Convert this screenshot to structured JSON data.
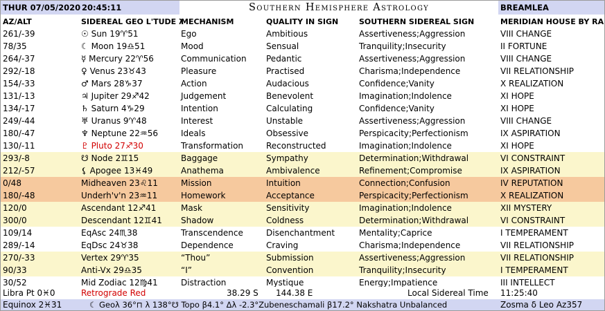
{
  "header": {
    "datetime": "THUR 07/05/2020",
    "time": "20:45:11",
    "title": "Southern Hemisphere Astrology",
    "location": "BREAMLEA"
  },
  "columns": [
    "AZ/ALT",
    "SIDEREAL GEO L'TUDE λ",
    "MECHANISM",
    "QUALITY IN SIGN",
    "SOUTHERN SIDEREAL SIGN",
    "MERIDIAN HOUSE BY RA"
  ],
  "rows": [
    {
      "azalt": "261/-39",
      "body": "☉ Sun 19♈51",
      "mechanism": "Ego",
      "quality": "Ambitious",
      "sign": "Assertiveness;Aggression",
      "house": "VIII CHANGE"
    },
    {
      "azalt": "78/35",
      "body": "☾ Moon 19♎51",
      "mechanism": "Mood",
      "quality": "Sensual",
      "sign": "Tranquility;Insecurity",
      "house": "II FORTUNE"
    },
    {
      "azalt": "264/-37",
      "body": "☿ Mercury 22♈56",
      "mechanism": "Communication",
      "quality": "Pedantic",
      "sign": "Assertiveness;Aggression",
      "house": "VIII CHANGE"
    },
    {
      "azalt": "292/-18",
      "body": "♀ Venus 23♉43",
      "mechanism": "Pleasure",
      "quality": "Practised",
      "sign": "Charisma;Independence",
      "house": "VII RELATIONSHIP"
    },
    {
      "azalt": "154/-33",
      "body": "♂ Mars 28♑37",
      "mechanism": "Action",
      "quality": "Audacious",
      "sign": "Confidence;Vanity",
      "house": "X REALIZATION"
    },
    {
      "azalt": "131/-13",
      "body": "♃ Jupiter 29♐42",
      "mechanism": "Judgement",
      "quality": "Benevolent",
      "sign": "Imagination;Indolence",
      "house": "XI HOPE"
    },
    {
      "azalt": "134/-17",
      "body": "♄ Saturn 4♑29",
      "mechanism": "Intention",
      "quality": "Calculating",
      "sign": "Confidence;Vanity",
      "house": "XI HOPE"
    },
    {
      "azalt": "249/-44",
      "body": "♅ Uranus 9♈48",
      "mechanism": "Interest",
      "quality": "Unstable",
      "sign": "Assertiveness;Aggression",
      "house": "VIII CHANGE"
    },
    {
      "azalt": "180/-47",
      "body": "♆ Neptune 22♒56",
      "mechanism": "Ideals",
      "quality": "Obsessive",
      "sign": "Perspicacity;Perfectionism",
      "house": "IX ASPIRATION"
    },
    {
      "azalt": "130/-11",
      "body": "♇ Pluto 27♐30",
      "mechanism": "Transformation",
      "quality": "Reconstructed",
      "sign": "Imagination;Indolence",
      "house": "XI HOPE"
    },
    {
      "azalt": "293/-8",
      "body": "☋ Node 2♊15",
      "mechanism": "Baggage",
      "quality": "Sympathy",
      "sign": "Determination;Withdrawal",
      "house": "VI CONSTRAINT"
    },
    {
      "azalt": "212/-57",
      "body": "⚸ Apogee 13♓49",
      "mechanism": "Anathema",
      "quality": "Ambivalence",
      "sign": "Refinement;Compromise",
      "house": "IX ASPIRATION"
    },
    {
      "azalt": "0/48",
      "body": "Midheaven 23♌11",
      "mechanism": "Mission",
      "quality": "Intuition",
      "sign": "Connection;Confusion",
      "house": "IV REPUTATION"
    },
    {
      "azalt": "180/-48",
      "body": "Underh'v'n 23♒11",
      "mechanism": "Homework",
      "quality": "Acceptance",
      "sign": "Perspicacity;Perfectionism",
      "house": "X REALIZATION"
    },
    {
      "azalt": "120/0",
      "body": "Ascendant 12♐41",
      "mechanism": "Mask",
      "quality": "Sensitivity",
      "sign": "Imagination;Indolence",
      "house": "XII MYSTERY"
    },
    {
      "azalt": "300/0",
      "body": "Descendant 12♊41",
      "mechanism": "Shadow",
      "quality": "Coldness",
      "sign": "Determination;Withdrawal",
      "house": "VI CONSTRAINT"
    },
    {
      "azalt": "109/14",
      "body": "EqAsc 24♏38",
      "mechanism": "Transcendence",
      "quality": "Disenchantment",
      "sign": "Mentality;Caprice",
      "house": "I TEMPERAMENT"
    },
    {
      "azalt": "289/-14",
      "body": "EqDsc 24♉38",
      "mechanism": "Dependence",
      "quality": "Craving",
      "sign": "Charisma;Independence",
      "house": "VII RELATIONSHIP"
    },
    {
      "azalt": "270/-33",
      "body": "Vertex 29♈35",
      "mechanism": "“Thou”",
      "quality": "Submission",
      "sign": "Assertiveness;Aggression",
      "house": "VII RELATIONSHIP"
    },
    {
      "azalt": "90/33",
      "body": "Anti-Vx 29♎35",
      "mechanism": "“I”",
      "quality": "Convention",
      "sign": "Tranquility;Insecurity",
      "house": "I TEMPERAMENT"
    },
    {
      "azalt": "30/52",
      "body": "Mid Zodiac 12♍41",
      "mechanism": "Distraction",
      "quality": "Mystique",
      "sign": "Energy;Impatience",
      "house": "III INTELLECT"
    }
  ],
  "footer": {
    "libra_pt": "Libra Pt 0♓0",
    "retrograde": "Retrograde Red",
    "lat": "38.29 S",
    "lon": "144.38 E",
    "lst_label": "Local Sidereal Time",
    "lst_value": "11:25:40",
    "equinox": "Equinox 2♓31",
    "geo_info": "☾ Geoλ 36°⊓ λ 138°☋ Topo β4.1° Δλ -2.3°Zubeneschamali β17.2° Nakshatra Unbalanced",
    "zosma": "Zosma δ Leo Az357"
  },
  "colors": {
    "header_bar": "#d2d6f2",
    "row_yellow": "#fbf6cc",
    "row_orange": "#f6c99e",
    "retrograde": "#d20000"
  }
}
